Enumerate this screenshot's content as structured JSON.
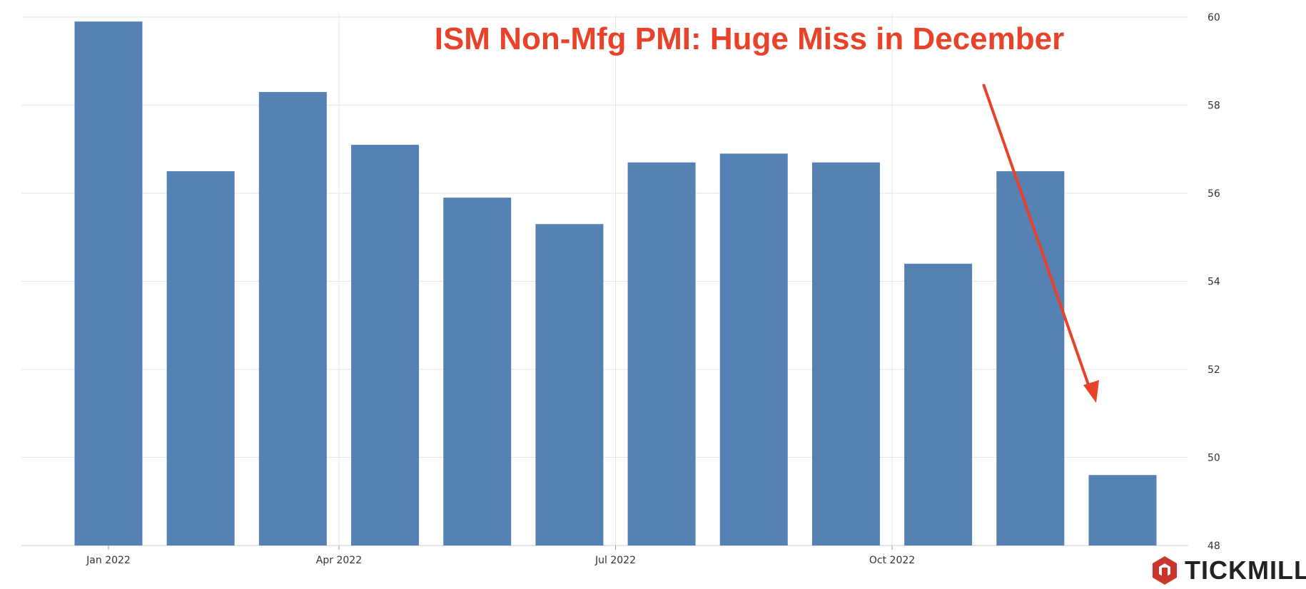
{
  "chart_data": {
    "type": "bar",
    "title": "ISM Non-Mfg PMI: Huge Miss in December",
    "categories": [
      "Jan 2022",
      "Feb 2022",
      "Mar 2022",
      "Apr 2022",
      "May 2022",
      "Jun 2022",
      "Jul 2022",
      "Aug 2022",
      "Sep 2022",
      "Oct 2022",
      "Nov 2022",
      "Dec 2022"
    ],
    "values": [
      59.9,
      56.5,
      58.3,
      57.1,
      55.9,
      55.3,
      56.7,
      56.9,
      56.7,
      54.4,
      56.5,
      49.6
    ],
    "x_tick_labels": [
      "Jan 2022",
      "Apr 2022",
      "Jul 2022",
      "Oct 2022"
    ],
    "y_tick_labels": [
      "48",
      "50",
      "52",
      "54",
      "56",
      "58",
      "60"
    ],
    "ylim": [
      48,
      60
    ],
    "ylabel": "",
    "xlabel": "",
    "grid": true,
    "y_axis_side": "right",
    "colors": {
      "bar": "#5681b3",
      "title": "#e8432a",
      "arrow": "#e8432a",
      "grid": "#e6e6e6",
      "tick_text": "#333333"
    },
    "annotation": {
      "type": "arrow",
      "target": "Dec 2022"
    }
  },
  "brand": {
    "name": "TICKMILL",
    "logo_icon": "tickmill-hexagon-logo-icon",
    "logo_color": "#c9362b"
  }
}
